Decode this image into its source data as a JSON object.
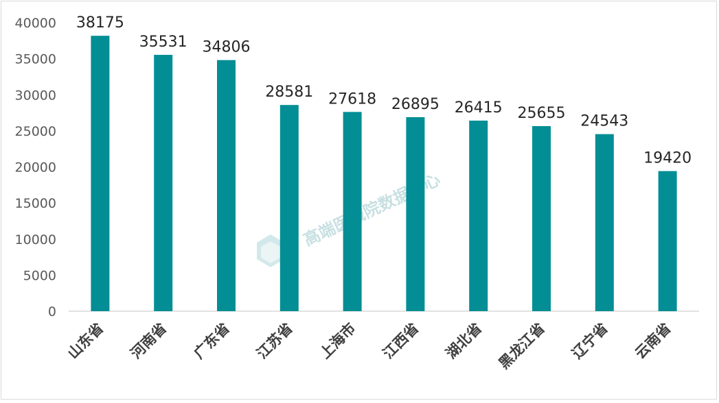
{
  "chart_data": {
    "type": "bar",
    "categories": [
      "山东省",
      "河南省",
      "广东省",
      "江苏省",
      "上海市",
      "江西省",
      "湖北省",
      "黑龙江省",
      "辽宁省",
      "云南省"
    ],
    "values": [
      38175,
      35531,
      34806,
      28581,
      27618,
      26895,
      26415,
      25655,
      24543,
      19420
    ],
    "yticks": [
      0,
      5000,
      10000,
      15000,
      20000,
      25000,
      30000,
      35000,
      40000
    ],
    "ylim": [
      0,
      40000
    ],
    "grid": false,
    "legend": "none",
    "bar_color": "#028e94",
    "watermark": "高端医械院数据中心"
  }
}
